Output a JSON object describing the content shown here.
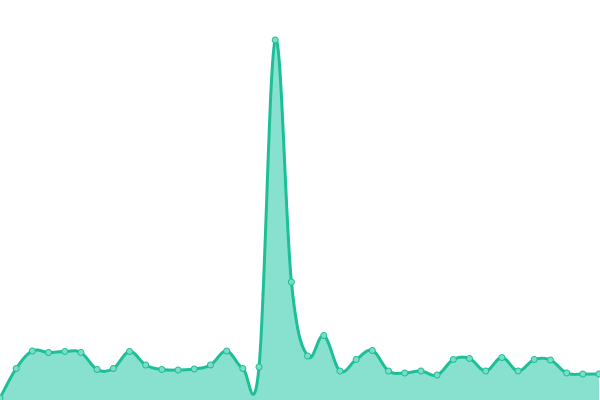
{
  "chart_data": {
    "type": "area",
    "title": "",
    "xlabel": "",
    "ylabel": "",
    "axes_visible": false,
    "grid": false,
    "legend": "none",
    "ylim": [
      0,
      400
    ],
    "x": [
      0,
      1,
      2,
      3,
      4,
      5,
      6,
      7,
      8,
      9,
      10,
      11,
      12,
      13,
      14,
      15,
      16,
      17,
      18,
      19,
      20,
      21,
      22,
      23,
      24,
      25,
      26,
      27,
      28,
      29,
      30,
      31,
      32,
      33,
      34,
      35,
      36,
      37
    ],
    "values": [
      2,
      31.5,
      49,
      47.5,
      48.5,
      47.5,
      30.5,
      31.5,
      48.5,
      35,
      30.5,
      30,
      31,
      35,
      49,
      31.5,
      33,
      360,
      118,
      44,
      64.5,
      29,
      40.5,
      49.5,
      29,
      27,
      29,
      25,
      40.5,
      41.5,
      29,
      42.5,
      29,
      40.5,
      40,
      27,
      26,
      26
    ],
    "colors": {
      "line": "#1dbf96",
      "fill": "#88e0ce",
      "marker_fill": "#7ddcc7"
    }
  }
}
